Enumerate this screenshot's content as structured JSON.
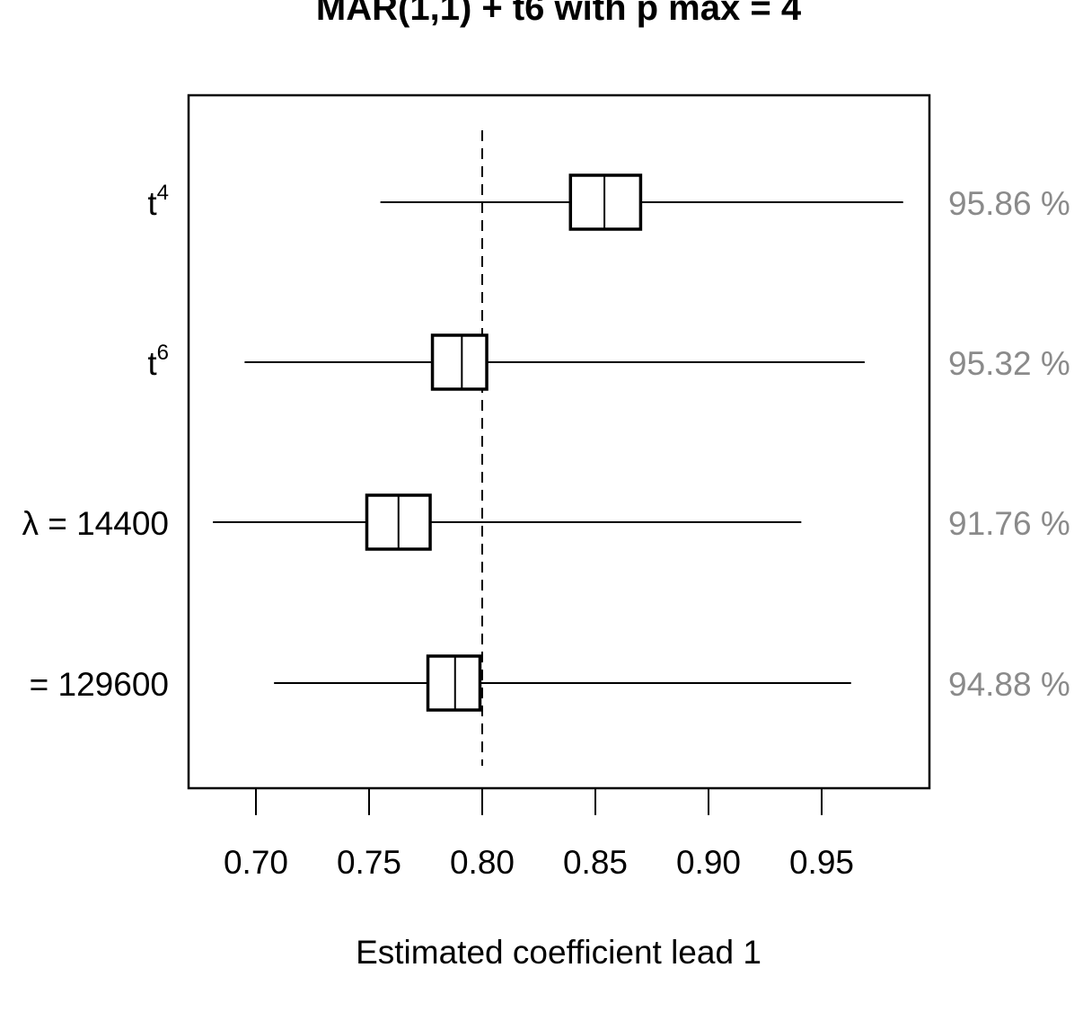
{
  "chart_data": {
    "type": "forest",
    "title": "MAR(1,1) + t6 with p max = 4",
    "xlabel": "Estimated coefficient lead 1",
    "reference_value": 0.8,
    "xlim": [
      0.67,
      1.0
    ],
    "xticks": [
      0.7,
      0.75,
      0.8,
      0.85,
      0.9,
      0.95
    ],
    "xtick_labels": [
      "0.70",
      "0.75",
      "0.80",
      "0.85",
      "0.90",
      "0.95"
    ],
    "rows": [
      {
        "label_base": "t",
        "label_sup": "4",
        "lower": 0.755,
        "q1": 0.839,
        "median": 0.854,
        "q3": 0.87,
        "upper": 0.986,
        "coverage": "95.86 %"
      },
      {
        "label_base": "t",
        "label_sup": "6",
        "lower": 0.695,
        "q1": 0.778,
        "median": 0.791,
        "q3": 0.802,
        "upper": 0.969,
        "coverage": "95.32 %"
      },
      {
        "label_base": "λ = 14400",
        "label_sup": "",
        "lower": 0.681,
        "q1": 0.749,
        "median": 0.763,
        "q3": 0.777,
        "upper": 0.941,
        "coverage": "91.76 %"
      },
      {
        "label_base": "= 129600",
        "label_sup": "",
        "lower": 0.708,
        "q1": 0.776,
        "median": 0.788,
        "q3": 0.799,
        "upper": 0.963,
        "coverage": "94.88 %"
      }
    ]
  }
}
